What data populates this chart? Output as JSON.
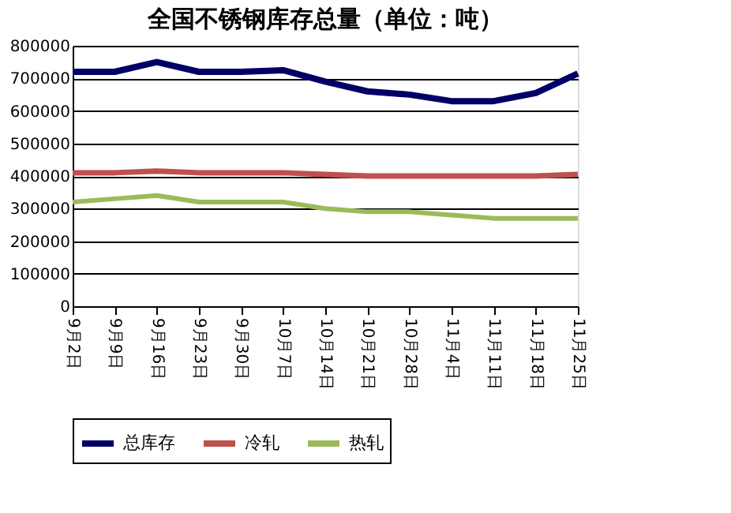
{
  "chart_data": {
    "type": "line",
    "title": "全国不锈钢库存总量（单位：吨）",
    "categories": [
      "9月2日",
      "9月9日",
      "9月16日",
      "9月23日",
      "9月30日",
      "10月7日",
      "10月14日",
      "10月21日",
      "10月28日",
      "11月4日",
      "11月11日",
      "11月18日",
      "11月25日"
    ],
    "series": [
      {
        "name": "总库存",
        "color": "#000066",
        "values": [
          720000,
          720000,
          750000,
          720000,
          720000,
          725000,
          690000,
          660000,
          650000,
          630000,
          630000,
          655000,
          715000
        ]
      },
      {
        "name": "冷轧",
        "color": "#c0504d",
        "values": [
          410000,
          410000,
          415000,
          410000,
          410000,
          410000,
          405000,
          400000,
          400000,
          400000,
          400000,
          400000,
          405000
        ]
      },
      {
        "name": "热轧",
        "color": "#9bbb59",
        "values": [
          320000,
          330000,
          340000,
          320000,
          320000,
          320000,
          300000,
          290000,
          290000,
          280000,
          270000,
          270000,
          270000
        ]
      }
    ],
    "ylim": [
      0,
      800000
    ],
    "yticks": [
      0,
      100000,
      200000,
      300000,
      400000,
      500000,
      600000,
      700000,
      800000
    ],
    "grid": "y",
    "legend": "bottom",
    "marker": "none",
    "line_style": "solid"
  }
}
